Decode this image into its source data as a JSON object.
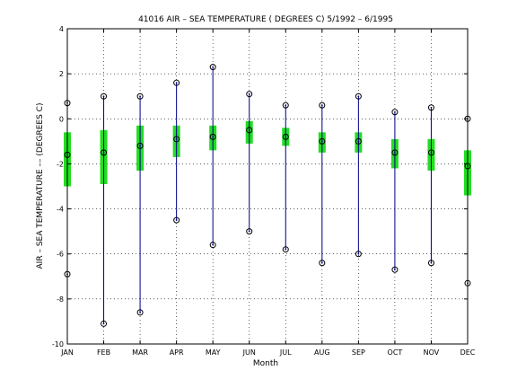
{
  "chart_data": {
    "type": "box",
    "title": "41016  AIR – SEA TEMPERATURE ( DEGREES C) 5/1992 – 6/1995",
    "xlabel": "Month",
    "ylabel": "AIR – SEA TEMPERATURE –– (DEGREES C)",
    "categories": [
      "JAN",
      "FEB",
      "MAR",
      "APR",
      "MAY",
      "JUN",
      "JUL",
      "AUG",
      "SEP",
      "OCT",
      "NOV",
      "DEC"
    ],
    "ylim": [
      -10,
      4
    ],
    "yticks": [
      -10,
      -8,
      -6,
      -4,
      -2,
      0,
      2,
      4
    ],
    "grid": true,
    "whisker_color": "#00008b",
    "box_color": "#22dd22",
    "marker_color": "#000000",
    "series": [
      {
        "max": 0.7,
        "q3": -0.6,
        "median": -1.6,
        "q1": -3.0,
        "min": -6.9
      },
      {
        "max": 1.0,
        "q3": -0.5,
        "median": -1.5,
        "q1": -2.9,
        "min": -9.1
      },
      {
        "max": 1.0,
        "q3": -0.3,
        "median": -1.2,
        "q1": -2.3,
        "min": -8.6
      },
      {
        "max": 1.6,
        "q3": -0.3,
        "median": -0.9,
        "q1": -1.7,
        "min": -4.5
      },
      {
        "max": 2.3,
        "q3": -0.3,
        "median": -0.8,
        "q1": -1.4,
        "min": -5.6
      },
      {
        "max": 1.1,
        "q3": -0.1,
        "median": -0.5,
        "q1": -1.1,
        "min": -5.0
      },
      {
        "max": 0.6,
        "q3": -0.4,
        "median": -0.8,
        "q1": -1.2,
        "min": -5.8
      },
      {
        "max": 0.6,
        "q3": -0.6,
        "median": -1.0,
        "q1": -1.5,
        "min": -6.4
      },
      {
        "max": 1.0,
        "q3": -0.6,
        "median": -1.0,
        "q1": -1.5,
        "min": -6.0
      },
      {
        "max": 0.3,
        "q3": -0.9,
        "median": -1.5,
        "q1": -2.2,
        "min": -6.7
      },
      {
        "max": 0.5,
        "q3": -0.9,
        "median": -1.5,
        "q1": -2.3,
        "min": -6.4
      },
      {
        "max": 0.0,
        "q3": -1.4,
        "median": -2.1,
        "q1": -3.4,
        "min": -7.3
      }
    ]
  }
}
